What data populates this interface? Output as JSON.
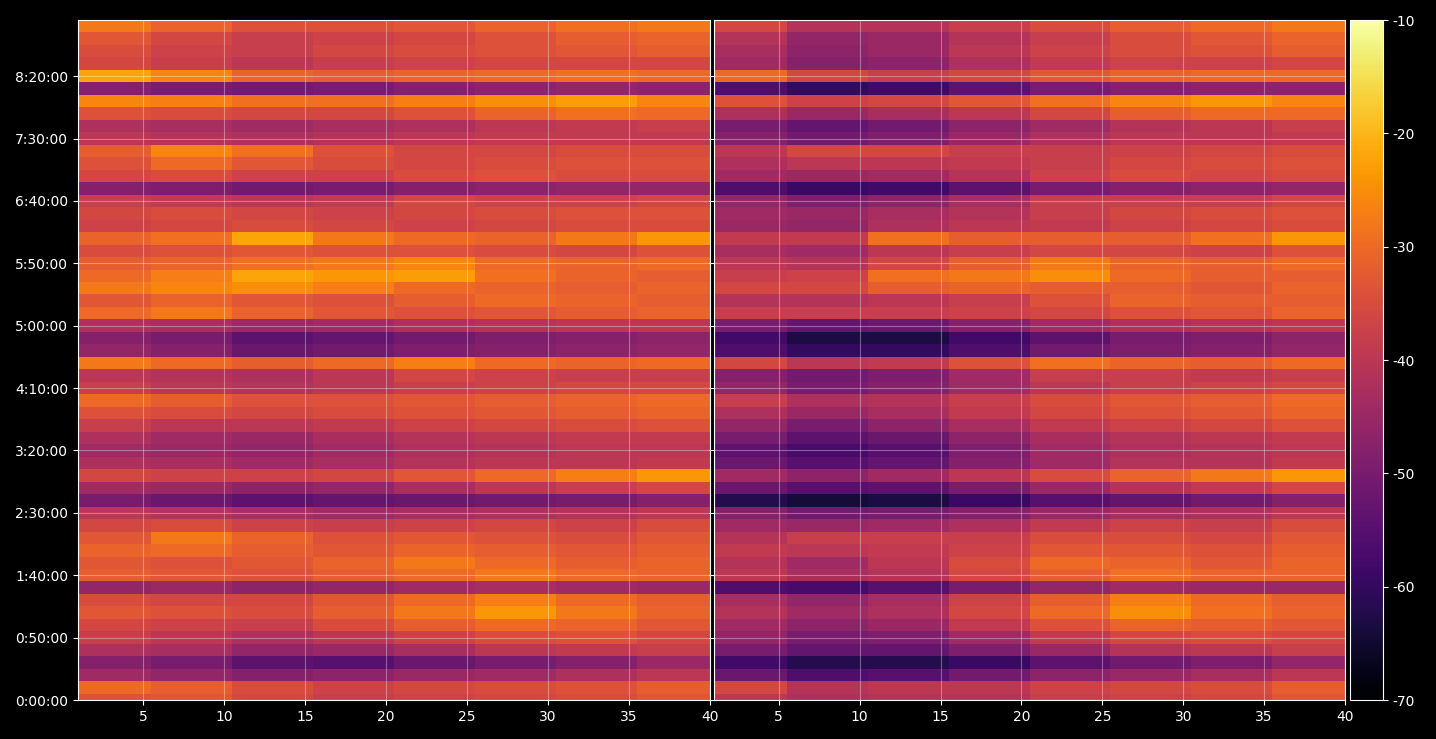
{
  "chart_data": [
    {
      "type": "heatmap",
      "x": [
        3,
        8,
        13,
        18,
        23,
        28,
        33,
        38
      ],
      "y": [
        0,
        600,
        1200,
        1800,
        2400,
        3000,
        3600,
        4200,
        4800,
        5400,
        6000,
        6600,
        7200,
        7800,
        8400,
        9000,
        9600,
        10200,
        10800,
        11400,
        12000,
        12600,
        13200,
        13800,
        14400,
        15000,
        15600,
        16200,
        16800,
        17400,
        18000,
        18600,
        19200,
        19800,
        20400,
        21000,
        21600,
        22200,
        22800,
        23400,
        24000,
        24600,
        25200,
        25800,
        26400,
        27000,
        27600,
        28200,
        28800,
        29400,
        30000,
        30600,
        31200,
        31800,
        32400
      ],
      "xlim": [
        1,
        40
      ],
      "xticks": [
        5,
        10,
        15,
        20,
        25,
        30,
        35,
        40
      ],
      "ylim": [
        0,
        32700
      ],
      "yticks": [
        {
          "value": 0,
          "label": "0:00:00"
        },
        {
          "value": 3000,
          "label": "0:50:00"
        },
        {
          "value": 6000,
          "label": "1:40:00"
        },
        {
          "value": 9000,
          "label": "2:30:00"
        },
        {
          "value": 12000,
          "label": "3:20:00"
        },
        {
          "value": 15000,
          "label": "4:10:00"
        },
        {
          "value": 18000,
          "label": "5:00:00"
        },
        {
          "value": 21000,
          "label": "5:50:00"
        },
        {
          "value": 24000,
          "label": "6:40:00"
        },
        {
          "value": 27000,
          "label": "7:30:00"
        },
        {
          "value": 30000,
          "label": "8:20:00"
        }
      ],
      "grid": true,
      "cells": [
        [
          -34,
          -33,
          -36,
          -38,
          -37,
          -36,
          -35,
          -33
        ],
        [
          -30,
          -32,
          -35,
          -37,
          -36,
          -35,
          -34,
          -32
        ],
        [
          -44,
          -46,
          -48,
          -47,
          -45,
          -44,
          -42,
          -40
        ],
        [
          -48,
          -50,
          -54,
          -55,
          -52,
          -50,
          -48,
          -45
        ],
        [
          -42,
          -43,
          -46,
          -45,
          -43,
          -40,
          -39,
          -38
        ],
        [
          -38,
          -40,
          -42,
          -40,
          -37,
          -35,
          -34,
          -36
        ],
        [
          -36,
          -37,
          -38,
          -35,
          -32,
          -30,
          -31,
          -33
        ],
        [
          -33,
          -34,
          -35,
          -32,
          -28,
          -24,
          -28,
          -31
        ],
        [
          -35,
          -36,
          -36,
          -33,
          -30,
          -27,
          -30,
          -32
        ],
        [
          -46,
          -45,
          -47,
          -46,
          -44,
          -43,
          -44,
          -45
        ],
        [
          -32,
          -33,
          -34,
          -32,
          -30,
          -28,
          -30,
          -31
        ],
        [
          -33,
          -34,
          -33,
          -31,
          -28,
          -30,
          -32,
          -31
        ],
        [
          -31,
          -30,
          -32,
          -33,
          -31,
          -32,
          -33,
          -32
        ],
        [
          -33,
          -28,
          -31,
          -34,
          -33,
          -34,
          -35,
          -33
        ],
        [
          -36,
          -35,
          -37,
          -38,
          -37,
          -36,
          -37,
          -35
        ],
        [
          -40,
          -41,
          -43,
          -44,
          -43,
          -42,
          -41,
          -40
        ],
        [
          -50,
          -52,
          -54,
          -53,
          -52,
          -51,
          -50,
          -48
        ],
        [
          -44,
          -45,
          -47,
          -46,
          -43,
          -40,
          -38,
          -36
        ],
        [
          -36,
          -37,
          -37,
          -36,
          -33,
          -30,
          -27,
          -24
        ],
        [
          -42,
          -43,
          -44,
          -43,
          -41,
          -40,
          -40,
          -39
        ],
        [
          -44,
          -45,
          -46,
          -44,
          -42,
          -41,
          -40,
          -40
        ],
        [
          -42,
          -44,
          -45,
          -43,
          -41,
          -40,
          -39,
          -39
        ],
        [
          -38,
          -40,
          -40,
          -39,
          -37,
          -36,
          -35,
          -34
        ],
        [
          -34,
          -35,
          -36,
          -35,
          -34,
          -33,
          -32,
          -31
        ],
        [
          -30,
          -32,
          -34,
          -34,
          -33,
          -32,
          -31,
          -30
        ],
        [
          -38,
          -40,
          -41,
          -40,
          -38,
          -37,
          -36,
          -36
        ],
        [
          -40,
          -41,
          -42,
          -40,
          -36,
          -37,
          -38,
          -38
        ],
        [
          -28,
          -30,
          -32,
          -30,
          -27,
          -30,
          -31,
          -30
        ],
        [
          -46,
          -48,
          -52,
          -51,
          -49,
          -48,
          -47,
          -46
        ],
        [
          -48,
          -50,
          -54,
          -53,
          -51,
          -49,
          -48,
          -47
        ],
        [
          -42,
          -43,
          -45,
          -44,
          -42,
          -41,
          -40,
          -40
        ],
        [
          -30,
          -28,
          -31,
          -33,
          -34,
          -33,
          -32,
          -31
        ],
        [
          -33,
          -31,
          -33,
          -34,
          -32,
          -30,
          -31,
          -32
        ],
        [
          -28,
          -26,
          -25,
          -27,
          -30,
          -31,
          -32,
          -31
        ],
        [
          -30,
          -27,
          -22,
          -24,
          -23,
          -29,
          -31,
          -32
        ],
        [
          -32,
          -31,
          -29,
          -28,
          -26,
          -30,
          -31,
          -30
        ],
        [
          -35,
          -34,
          -33,
          -34,
          -34,
          -35,
          -36,
          -34
        ],
        [
          -31,
          -29,
          -22,
          -28,
          -30,
          -31,
          -28,
          -24
        ],
        [
          -37,
          -36,
          -35,
          -36,
          -37,
          -36,
          -35,
          -35
        ],
        [
          -36,
          -35,
          -36,
          -37,
          -36,
          -35,
          -34,
          -34
        ],
        [
          -38,
          -39,
          -40,
          -39,
          -36,
          -37,
          -37,
          -36
        ],
        [
          -48,
          -49,
          -51,
          -50,
          -48,
          -47,
          -46,
          -46
        ],
        [
          -36,
          -35,
          -37,
          -37,
          -35,
          -34,
          -35,
          -35
        ],
        [
          -34,
          -30,
          -33,
          -35,
          -36,
          -35,
          -34,
          -34
        ],
        [
          -32,
          -26,
          -29,
          -34,
          -36,
          -36,
          -35,
          -35
        ],
        [
          -40,
          -41,
          -42,
          -41,
          -40,
          -39,
          -39,
          -39
        ],
        [
          -42,
          -43,
          -44,
          -43,
          -42,
          -40,
          -39,
          -38
        ],
        [
          -34,
          -35,
          -36,
          -36,
          -34,
          -31,
          -29,
          -30
        ],
        [
          -26,
          -27,
          -29,
          -29,
          -27,
          -25,
          -23,
          -26
        ],
        [
          -48,
          -50,
          -51,
          -50,
          -48,
          -47,
          -46,
          -47
        ],
        [
          -22,
          -26,
          -31,
          -32,
          -31,
          -30,
          -29,
          -30
        ],
        [
          -36,
          -38,
          -40,
          -38,
          -37,
          -36,
          -36,
          -36
        ],
        [
          -35,
          -37,
          -38,
          -36,
          -35,
          -34,
          -33,
          -32
        ],
        [
          -33,
          -36,
          -38,
          -37,
          -36,
          -34,
          -32,
          -31
        ],
        [
          -28,
          -31,
          -34,
          -34,
          -33,
          -31,
          -29,
          -28
        ]
      ]
    },
    {
      "type": "heatmap",
      "x": [
        3,
        8,
        13,
        18,
        23,
        28,
        33,
        38
      ],
      "y": [
        0,
        600,
        1200,
        1800,
        2400,
        3000,
        3600,
        4200,
        4800,
        5400,
        6000,
        6600,
        7200,
        7800,
        8400,
        9000,
        9600,
        10200,
        10800,
        11400,
        12000,
        12600,
        13200,
        13800,
        14400,
        15000,
        15600,
        16200,
        16800,
        17400,
        18000,
        18600,
        19200,
        19800,
        20400,
        21000,
        21600,
        22200,
        22800,
        23400,
        24000,
        24600,
        25200,
        25800,
        26400,
        27000,
        27600,
        28200,
        28800,
        29400,
        30000,
        30600,
        31200,
        31800,
        32400
      ],
      "xlim": [
        1,
        40
      ],
      "xticks": [
        5,
        10,
        15,
        20,
        25,
        30,
        35,
        40
      ],
      "ylim": [
        0,
        32700
      ],
      "yticks": [
        0,
        3000,
        6000,
        9000,
        12000,
        15000,
        18000,
        21000,
        24000,
        27000,
        30000
      ],
      "grid": true,
      "tick_labels": "x",
      "cells": [
        [
          -40,
          -42,
          -41,
          -41,
          -38,
          -37,
          -36,
          -33
        ],
        [
          -36,
          -41,
          -40,
          -40,
          -37,
          -36,
          -35,
          -32
        ],
        [
          -52,
          -56,
          -55,
          -51,
          -47,
          -45,
          -43,
          -40
        ],
        [
          -58,
          -62,
          -62,
          -59,
          -54,
          -51,
          -49,
          -46
        ],
        [
          -50,
          -53,
          -53,
          -49,
          -45,
          -41,
          -40,
          -38
        ],
        [
          -46,
          -50,
          -49,
          -44,
          -39,
          -36,
          -35,
          -36
        ],
        [
          -44,
          -47,
          -45,
          -39,
          -34,
          -31,
          -32,
          -33
        ],
        [
          -41,
          -44,
          -42,
          -36,
          -30,
          -25,
          -29,
          -31
        ],
        [
          -43,
          -46,
          -43,
          -37,
          -32,
          -27,
          -30,
          -32
        ],
        [
          -56,
          -57,
          -55,
          -50,
          -46,
          -44,
          -45,
          -45
        ],
        [
          -40,
          -43,
          -41,
          -36,
          -32,
          -29,
          -31,
          -31
        ],
        [
          -41,
          -44,
          -40,
          -35,
          -30,
          -31,
          -33,
          -31
        ],
        [
          -39,
          -40,
          -39,
          -37,
          -33,
          -33,
          -34,
          -32
        ],
        [
          -41,
          -38,
          -38,
          -38,
          -35,
          -35,
          -36,
          -33
        ],
        [
          -44,
          -45,
          -44,
          -42,
          -39,
          -37,
          -38,
          -35
        ],
        [
          -48,
          -51,
          -50,
          -48,
          -45,
          -43,
          -42,
          -40
        ],
        [
          -62,
          -64,
          -63,
          -59,
          -55,
          -53,
          -51,
          -48
        ],
        [
          -52,
          -55,
          -54,
          -50,
          -45,
          -41,
          -39,
          -36
        ],
        [
          -44,
          -47,
          -44,
          -40,
          -35,
          -31,
          -28,
          -24
        ],
        [
          -52,
          -55,
          -53,
          -48,
          -44,
          -41,
          -41,
          -39
        ],
        [
          -54,
          -57,
          -55,
          -49,
          -44,
          -42,
          -41,
          -40
        ],
        [
          -50,
          -54,
          -52,
          -47,
          -43,
          -41,
          -40,
          -39
        ],
        [
          -46,
          -50,
          -47,
          -43,
          -39,
          -37,
          -36,
          -34
        ],
        [
          -42,
          -45,
          -43,
          -39,
          -36,
          -34,
          -33,
          -31
        ],
        [
          -38,
          -42,
          -41,
          -38,
          -35,
          -33,
          -32,
          -30
        ],
        [
          -46,
          -50,
          -48,
          -44,
          -40,
          -38,
          -37,
          -36
        ],
        [
          -48,
          -51,
          -49,
          -44,
          -38,
          -38,
          -39,
          -38
        ],
        [
          -36,
          -40,
          -39,
          -34,
          -29,
          -31,
          -32,
          -30
        ],
        [
          -56,
          -60,
          -60,
          -56,
          -51,
          -49,
          -48,
          -46
        ],
        [
          -58,
          -63,
          -63,
          -58,
          -54,
          -50,
          -49,
          -47
        ],
        [
          -50,
          -53,
          -52,
          -48,
          -44,
          -42,
          -41,
          -40
        ],
        [
          -38,
          -38,
          -38,
          -37,
          -36,
          -34,
          -33,
          -31
        ],
        [
          -41,
          -41,
          -40,
          -38,
          -34,
          -31,
          -32,
          -32
        ],
        [
          -36,
          -36,
          -32,
          -31,
          -32,
          -32,
          -33,
          -31
        ],
        [
          -38,
          -37,
          -29,
          -28,
          -25,
          -30,
          -32,
          -32
        ],
        [
          -40,
          -41,
          -36,
          -32,
          -28,
          -31,
          -32,
          -30
        ],
        [
          -43,
          -44,
          -40,
          -38,
          -36,
          -36,
          -37,
          -34
        ],
        [
          -39,
          -39,
          -29,
          -32,
          -32,
          -32,
          -29,
          -24
        ],
        [
          -45,
          -46,
          -42,
          -40,
          -39,
          -37,
          -36,
          -35
        ],
        [
          -44,
          -45,
          -43,
          -41,
          -38,
          -36,
          -35,
          -34
        ],
        [
          -46,
          -49,
          -47,
          -43,
          -38,
          -38,
          -38,
          -36
        ],
        [
          -56,
          -59,
          -58,
          -54,
          -50,
          -48,
          -47,
          -46
        ],
        [
          -44,
          -45,
          -44,
          -41,
          -37,
          -35,
          -36,
          -35
        ],
        [
          -42,
          -40,
          -40,
          -39,
          -38,
          -36,
          -35,
          -34
        ],
        [
          -40,
          -36,
          -36,
          -38,
          -38,
          -37,
          -36,
          -35
        ],
        [
          -48,
          -51,
          -49,
          -45,
          -42,
          -40,
          -40,
          -39
        ],
        [
          -50,
          -53,
          -51,
          -47,
          -44,
          -41,
          -40,
          -38
        ],
        [
          -42,
          -45,
          -43,
          -40,
          -36,
          -32,
          -30,
          -30
        ],
        [
          -34,
          -37,
          -36,
          -33,
          -29,
          -26,
          -24,
          -26
        ],
        [
          -56,
          -60,
          -58,
          -54,
          -50,
          -48,
          -47,
          -47
        ],
        [
          -30,
          -36,
          -38,
          -36,
          -33,
          -31,
          -30,
          -30
        ],
        [
          -44,
          -48,
          -47,
          -42,
          -39,
          -37,
          -37,
          -36
        ],
        [
          -43,
          -47,
          -45,
          -40,
          -37,
          -35,
          -34,
          -32
        ],
        [
          -41,
          -46,
          -45,
          -41,
          -38,
          -35,
          -33,
          -31
        ],
        [
          -36,
          -41,
          -41,
          -38,
          -35,
          -32,
          -30,
          -28
        ]
      ],
      "colorbar_range": [
        -70,
        -10
      ],
      "colorbar_ticks": [
        -70,
        -60,
        -50,
        -40,
        -30,
        -20,
        -10
      ]
    }
  ]
}
